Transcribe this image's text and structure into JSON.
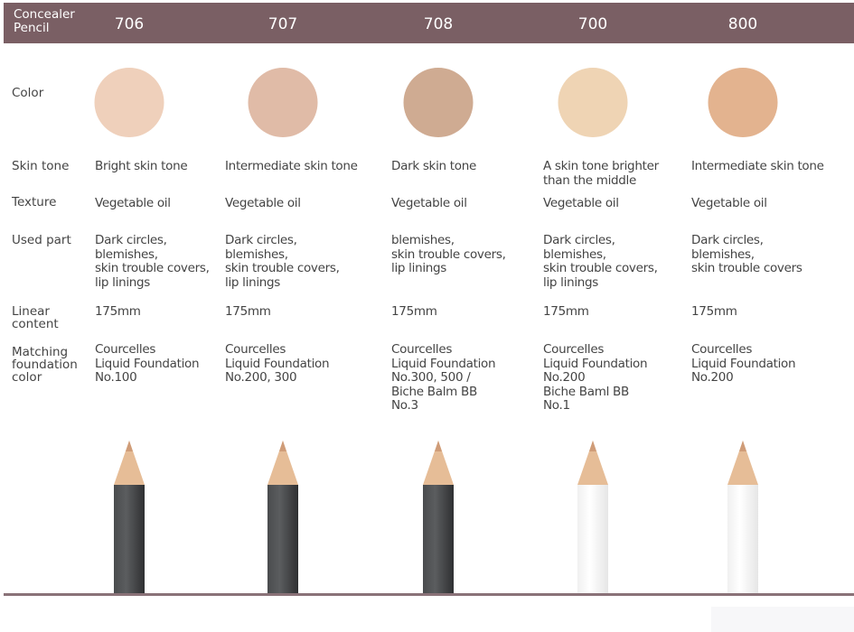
{
  "header": {
    "title": "Concealer\nPencil",
    "color": "#7a5f64"
  },
  "row_labels": {
    "color": "Color",
    "skin_tone": "Skin tone",
    "texture": "Texture",
    "used_part": "Used part",
    "linear_content": "Linear\ncontent",
    "matching": "Matching\nfoundation\ncolor"
  },
  "products": [
    {
      "code": "706",
      "swatch": "#efd0bb",
      "skin_tone": "Bright skin tone",
      "texture": "Vegetable oil",
      "used_part": "Dark circles,\nblemishes,\nskin trouble covers,\nlip linings",
      "linear_content": "175mm",
      "matching": "Courcelles\nLiquid Foundation\nNo.100",
      "pencil_body": "dark"
    },
    {
      "code": "707",
      "swatch": "#e0bba7",
      "skin_tone": "Intermediate skin tone",
      "texture": "Vegetable oil",
      "used_part": "Dark circles,\nblemishes,\nskin trouble covers,\nlip linings",
      "linear_content": "175mm",
      "matching": "Courcelles\nLiquid Foundation\nNo.200, 300",
      "pencil_body": "dark"
    },
    {
      "code": "708",
      "swatch": "#cfab92",
      "skin_tone": "Dark skin tone",
      "texture": "Vegetable oil",
      "used_part": "blemishes,\nskin trouble covers,\nlip linings",
      "linear_content": "175mm",
      "matching": "Courcelles\nLiquid Foundation\nNo.300, 500 /\nBiche Balm BB\nNo.3",
      "pencil_body": "dark"
    },
    {
      "code": "700",
      "swatch": "#efd4b4",
      "skin_tone": "A skin tone brighter\nthan the middle",
      "texture": "Vegetable oil",
      "used_part": "Dark circles,\nblemishes,\nskin trouble covers,\nlip linings",
      "linear_content": "175mm",
      "matching": "Courcelles\nLiquid Foundation\nNo.200\nBiche Baml BB\nNo.1",
      "pencil_body": "white"
    },
    {
      "code": "800",
      "swatch": "#e3b38f",
      "skin_tone": "Intermediate skin tone",
      "texture": "Vegetable oil",
      "used_part": "Dark circles,\nblemishes,\nskin trouble covers",
      "linear_content": "175mm",
      "matching": "Courcelles\nLiquid Foundation\nNo.200",
      "pencil_body": "white"
    }
  ]
}
